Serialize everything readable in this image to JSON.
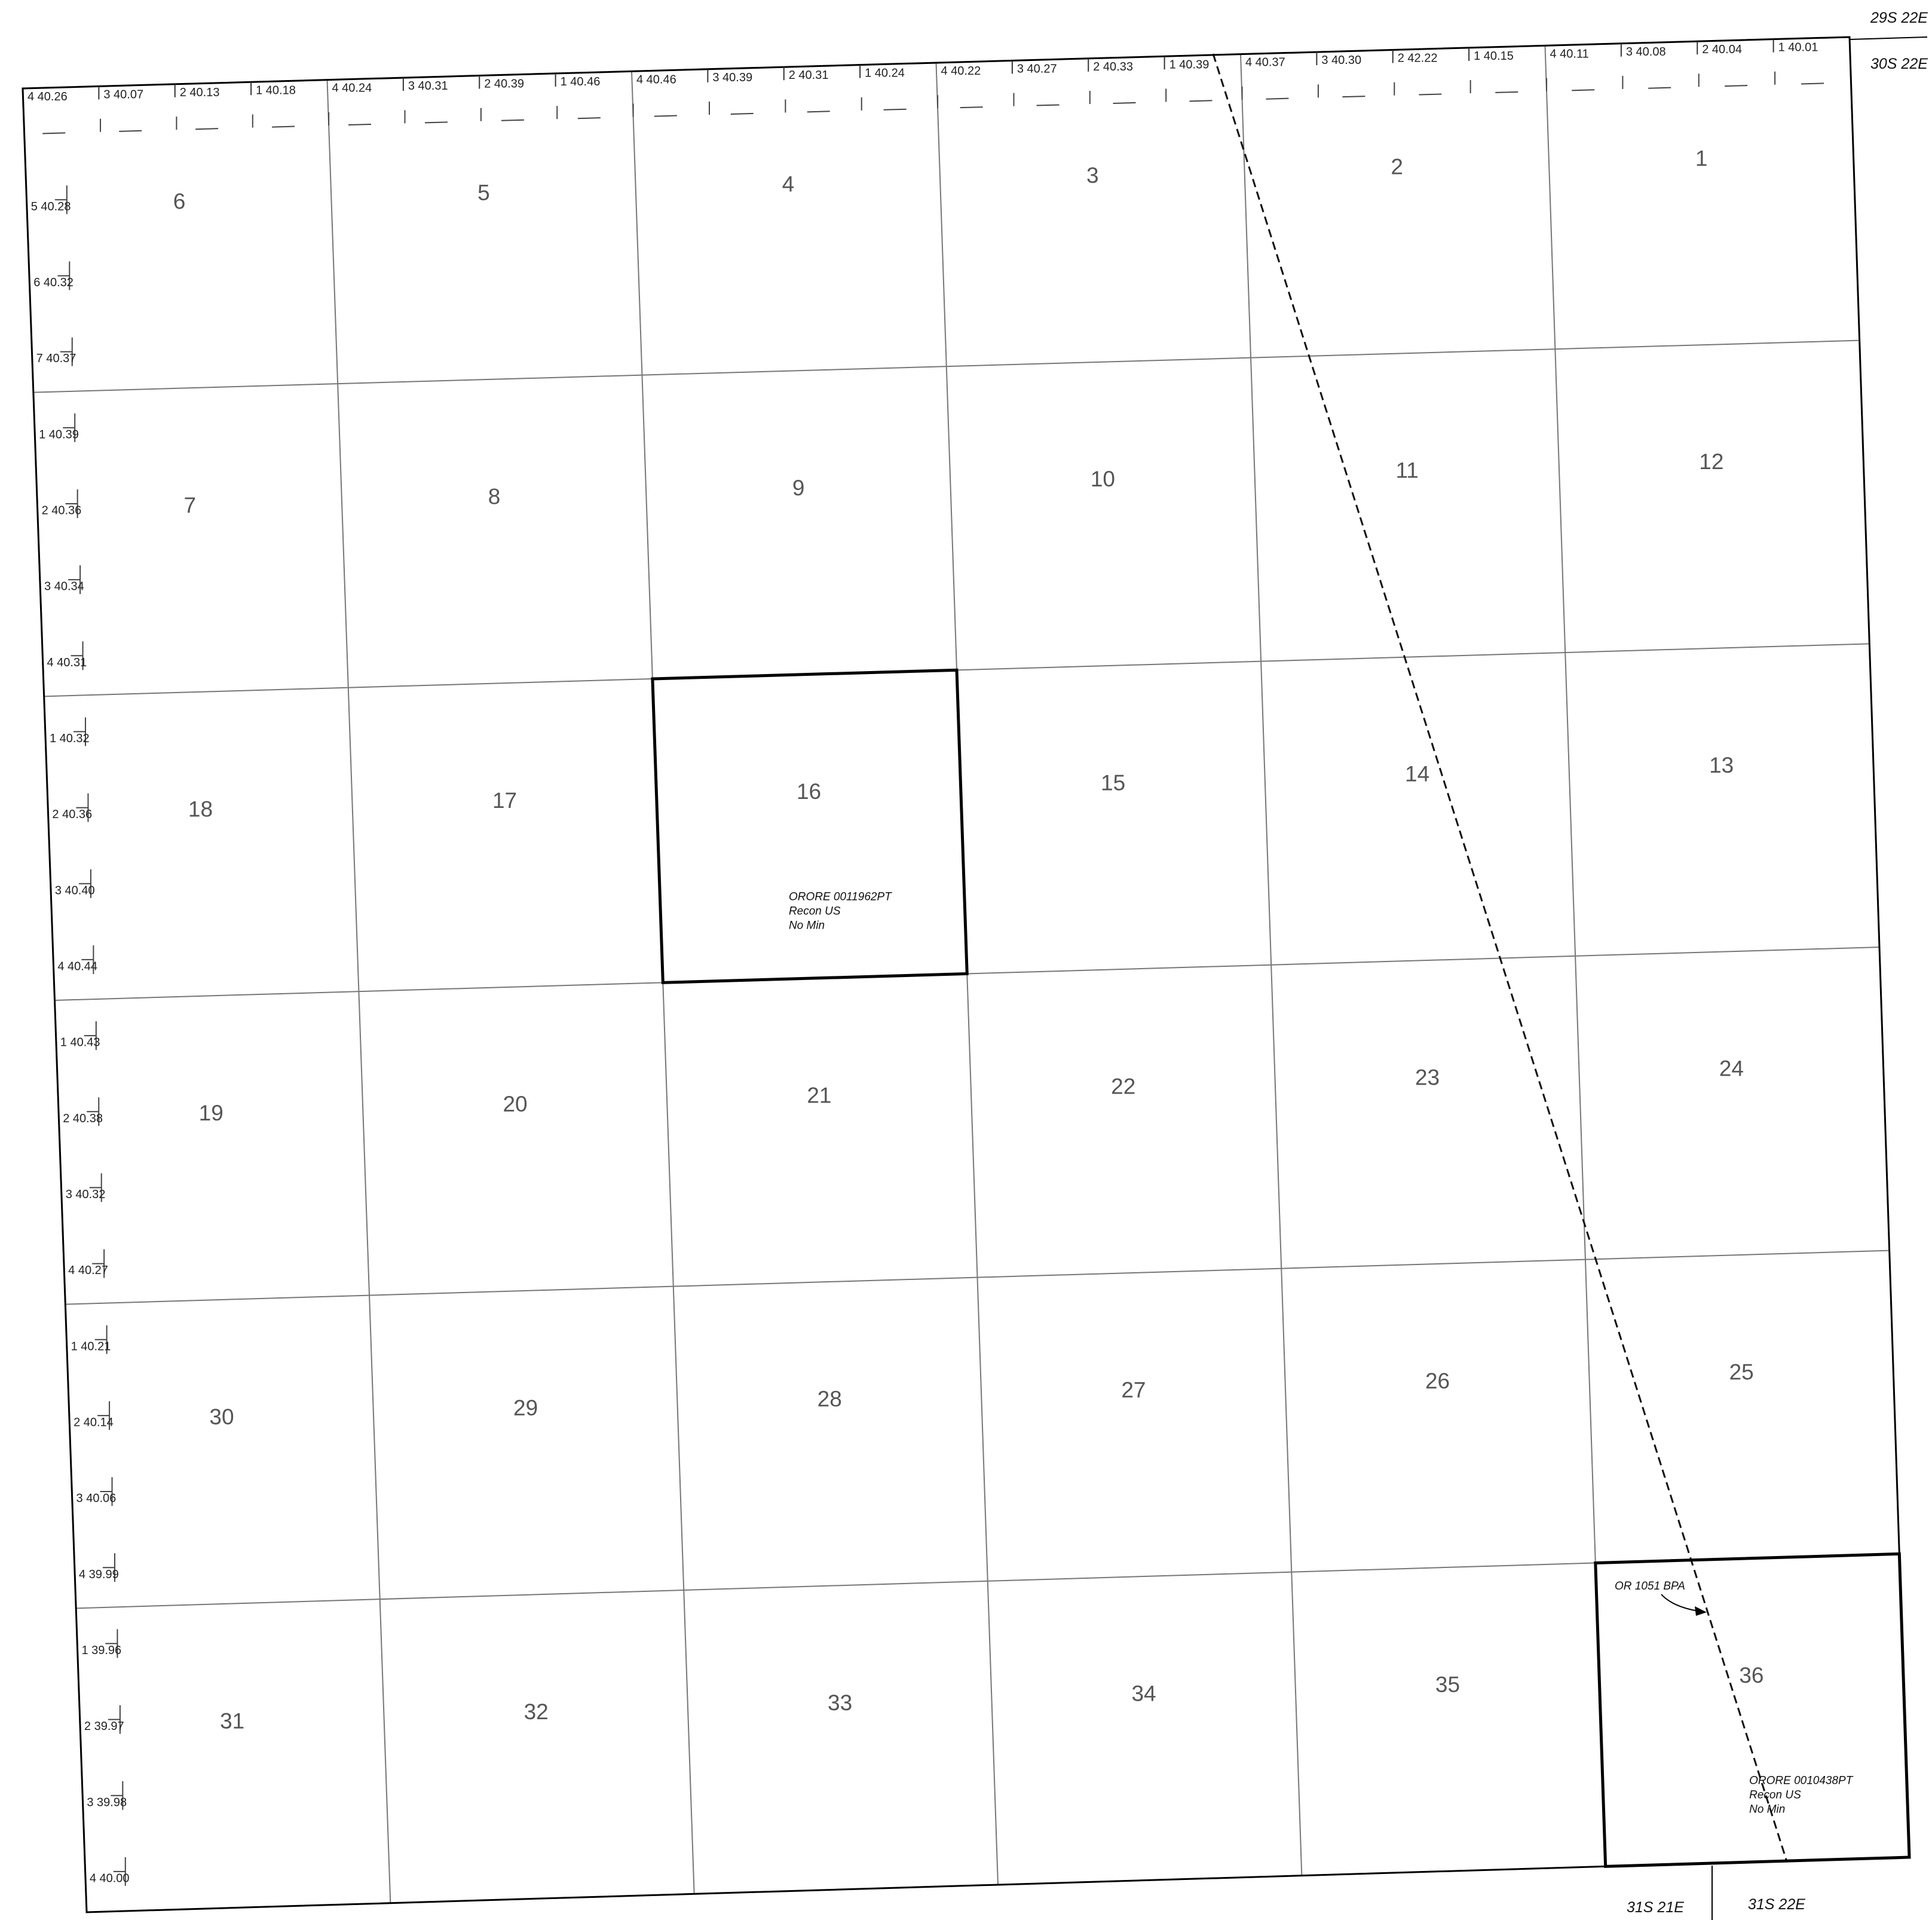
{
  "map": {
    "township_labels": {
      "top_right_north": "29S 22E",
      "top_right_south": "30S 22E",
      "bottom_left": "31S 21E",
      "bottom_right": "31S 22E"
    },
    "sections": [
      {
        "number": "6",
        "row": 0,
        "col": 0
      },
      {
        "number": "5",
        "row": 0,
        "col": 1
      },
      {
        "number": "4",
        "row": 0,
        "col": 2
      },
      {
        "number": "3",
        "row": 0,
        "col": 3
      },
      {
        "number": "2",
        "row": 0,
        "col": 4
      },
      {
        "number": "1",
        "row": 0,
        "col": 5
      },
      {
        "number": "7",
        "row": 1,
        "col": 0
      },
      {
        "number": "8",
        "row": 1,
        "col": 1
      },
      {
        "number": "9",
        "row": 1,
        "col": 2
      },
      {
        "number": "10",
        "row": 1,
        "col": 3
      },
      {
        "number": "11",
        "row": 1,
        "col": 4
      },
      {
        "number": "12",
        "row": 1,
        "col": 5
      },
      {
        "number": "18",
        "row": 2,
        "col": 0
      },
      {
        "number": "17",
        "row": 2,
        "col": 1
      },
      {
        "number": "16",
        "row": 2,
        "col": 2
      },
      {
        "number": "15",
        "row": 2,
        "col": 3
      },
      {
        "number": "14",
        "row": 2,
        "col": 4
      },
      {
        "number": "13",
        "row": 2,
        "col": 5
      },
      {
        "number": "19",
        "row": 3,
        "col": 0
      },
      {
        "number": "20",
        "row": 3,
        "col": 1
      },
      {
        "number": "21",
        "row": 3,
        "col": 2
      },
      {
        "number": "22",
        "row": 3,
        "col": 3
      },
      {
        "number": "23",
        "row": 3,
        "col": 4
      },
      {
        "number": "24",
        "row": 3,
        "col": 5
      },
      {
        "number": "30",
        "row": 4,
        "col": 0
      },
      {
        "number": "29",
        "row": 4,
        "col": 1
      },
      {
        "number": "28",
        "row": 4,
        "col": 2
      },
      {
        "number": "27",
        "row": 4,
        "col": 3
      },
      {
        "number": "26",
        "row": 4,
        "col": 4
      },
      {
        "number": "25",
        "row": 4,
        "col": 5
      },
      {
        "number": "31",
        "row": 5,
        "col": 0
      },
      {
        "number": "32",
        "row": 5,
        "col": 1
      },
      {
        "number": "33",
        "row": 5,
        "col": 2
      },
      {
        "number": "34",
        "row": 5,
        "col": 3
      },
      {
        "number": "35",
        "row": 5,
        "col": 4
      },
      {
        "number": "36",
        "row": 5,
        "col": 5
      }
    ],
    "north_lots": [
      [
        "4 40.26",
        "3 40.07",
        "2 40.13",
        "1 40.18"
      ],
      [
        "4 40.24",
        "3 40.31",
        "2 40.39",
        "1 40.46"
      ],
      [
        "4 40.46",
        "3 40.39",
        "2 40.31",
        "1 40.24"
      ],
      [
        "4 40.22",
        "3 40.27",
        "2 40.33",
        "1 40.39"
      ],
      [
        "4 40.37",
        "3 40.30",
        "2 42.22",
        "1 40.15"
      ],
      [
        "4 40.11",
        "3 40.08",
        "2 40.04",
        "1 40.01"
      ]
    ],
    "west_lots": [
      [
        "5 40.28",
        "6 40.32",
        "7 40.37"
      ],
      [
        "1 40.39",
        "2 40.36",
        "3 40.34",
        "4 40.31"
      ],
      [
        "1 40.32",
        "2 40.36",
        "3 40.40",
        "4 40.44"
      ],
      [
        "1 40.43",
        "2 40.38",
        "3 40.32",
        "4 40.27"
      ],
      [
        "1 40.21",
        "2 40.14",
        "3 40.06",
        "4 39.99"
      ],
      [
        "1 39.96",
        "2 39.97",
        "3 39.98",
        "4 40.00"
      ]
    ],
    "highlighted_parcels": [
      {
        "section": "16",
        "lines": [
          "ORORE 0011962PT",
          "Recon US",
          "No Min"
        ]
      },
      {
        "section": "36",
        "lines": [
          "ORORE 0010438PT",
          "Recon US",
          "No Min"
        ]
      }
    ],
    "line_annotation": {
      "text": "OR 1051  BPA"
    }
  }
}
